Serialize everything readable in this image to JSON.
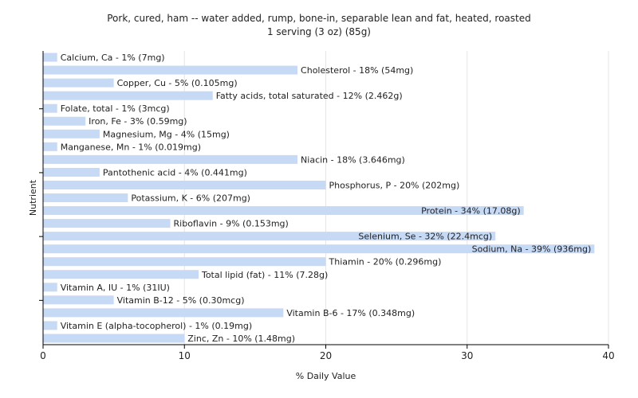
{
  "chart_data": {
    "type": "bar",
    "orientation": "horizontal",
    "title": "Pork, cured, ham -- water added, rump, bone-in, separable lean and fat, heated, roasted",
    "subtitle": "1 serving (3 oz) (85g)",
    "xlabel": "% Daily Value",
    "ylabel": "Nutrient",
    "xlim": [
      0,
      40
    ],
    "xticks": [
      0,
      10,
      20,
      30,
      40
    ],
    "grid": true,
    "bar_color": "#c6d9f5",
    "categories": [
      "Calcium, Ca",
      "Cholesterol",
      "Copper, Cu",
      "Fatty acids, total saturated",
      "Folate, total",
      "Iron, Fe",
      "Magnesium, Mg",
      "Manganese, Mn",
      "Niacin",
      "Pantothenic acid",
      "Phosphorus, P",
      "Potassium, K",
      "Protein",
      "Riboflavin",
      "Selenium, Se",
      "Sodium, Na",
      "Thiamin",
      "Total lipid (fat)",
      "Vitamin A, IU",
      "Vitamin B-12",
      "Vitamin B-6",
      "Vitamin E (alpha-tocopherol)",
      "Zinc, Zn"
    ],
    "values": [
      1,
      18,
      5,
      12,
      1,
      3,
      4,
      1,
      18,
      4,
      20,
      6,
      34,
      9,
      32,
      39,
      20,
      11,
      1,
      5,
      17,
      1,
      10
    ],
    "labels": [
      "Calcium, Ca - 1% (7mg)",
      "Cholesterol - 18% (54mg)",
      "Copper, Cu - 5% (0.105mg)",
      "Fatty acids, total saturated - 12% (2.462g)",
      "Folate, total - 1% (3mcg)",
      "Iron, Fe - 3% (0.59mg)",
      "Magnesium, Mg - 4% (15mg)",
      "Manganese, Mn - 1% (0.019mg)",
      "Niacin - 18% (3.646mg)",
      "Pantothenic acid - 4% (0.441mg)",
      "Phosphorus, P - 20% (202mg)",
      "Potassium, K - 6% (207mg)",
      "Protein - 34% (17.08g)",
      "Riboflavin - 9% (0.153mg)",
      "Selenium, Se - 32% (22.4mcg)",
      "Sodium, Na - 39% (936mg)",
      "Thiamin - 20% (0.296mg)",
      "Total lipid (fat) - 11% (7.28g)",
      "Vitamin A, IU - 1% (31IU)",
      "Vitamin B-12 - 5% (0.30mcg)",
      "Vitamin B-6 - 17% (0.348mg)",
      "Vitamin E (alpha-tocopherol) - 1% (0.19mg)",
      "Zinc, Zn - 10% (1.48mg)"
    ]
  }
}
